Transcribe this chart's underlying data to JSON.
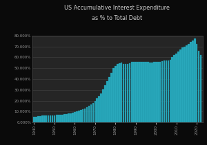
{
  "title_line1": "US Accumulative Interest Expenditure",
  "title_line2": "as % to Total Debt",
  "background_color": "#0a0a0a",
  "plot_bg_color": "#252525",
  "bar_color": "#29a8bb",
  "bar_edge_color": "#1a8ca0",
  "title_color": "#cccccc",
  "tick_color": "#999999",
  "grid_color": "#444444",
  "ylim": [
    0.0,
    0.8
  ],
  "yticks": [
    0.0,
    0.1,
    0.2,
    0.3,
    0.4,
    0.5,
    0.6,
    0.7,
    0.8
  ],
  "years": [
    1940,
    1941,
    1942,
    1943,
    1944,
    1945,
    1946,
    1947,
    1948,
    1949,
    1950,
    1951,
    1952,
    1953,
    1954,
    1955,
    1956,
    1957,
    1958,
    1959,
    1960,
    1961,
    1962,
    1963,
    1964,
    1965,
    1966,
    1967,
    1968,
    1969,
    1970,
    1971,
    1972,
    1973,
    1974,
    1975,
    1976,
    1977,
    1978,
    1979,
    1980,
    1981,
    1982,
    1983,
    1984,
    1985,
    1986,
    1987,
    1988,
    1989,
    1990,
    1991,
    1992,
    1993,
    1994,
    1995,
    1996,
    1997,
    1998,
    1999,
    2000,
    2001,
    2002,
    2003,
    2004,
    2005,
    2006,
    2007,
    2008,
    2009,
    2010,
    2011,
    2012,
    2013,
    2014,
    2015,
    2016,
    2017,
    2018,
    2019,
    2020,
    2021,
    2022
  ],
  "values": [
    0.05,
    0.055,
    0.058,
    0.06,
    0.062,
    0.063,
    0.064,
    0.065,
    0.066,
    0.067,
    0.068,
    0.069,
    0.07,
    0.071,
    0.072,
    0.075,
    0.078,
    0.082,
    0.085,
    0.09,
    0.095,
    0.1,
    0.108,
    0.115,
    0.122,
    0.13,
    0.14,
    0.152,
    0.165,
    0.18,
    0.2,
    0.22,
    0.245,
    0.27,
    0.305,
    0.34,
    0.38,
    0.42,
    0.46,
    0.5,
    0.52,
    0.54,
    0.545,
    0.55,
    0.54,
    0.54,
    0.54,
    0.545,
    0.555,
    0.56,
    0.56,
    0.558,
    0.56,
    0.558,
    0.558,
    0.558,
    0.555,
    0.553,
    0.552,
    0.555,
    0.56,
    0.558,
    0.56,
    0.565,
    0.568,
    0.57,
    0.572,
    0.575,
    0.6,
    0.62,
    0.635,
    0.65,
    0.67,
    0.69,
    0.7,
    0.71,
    0.72,
    0.74,
    0.755,
    0.77,
    0.72,
    0.66,
    0.62
  ],
  "xtick_years": [
    1940,
    1950,
    1960,
    1970,
    1980,
    1990,
    2000,
    2010,
    2020
  ]
}
